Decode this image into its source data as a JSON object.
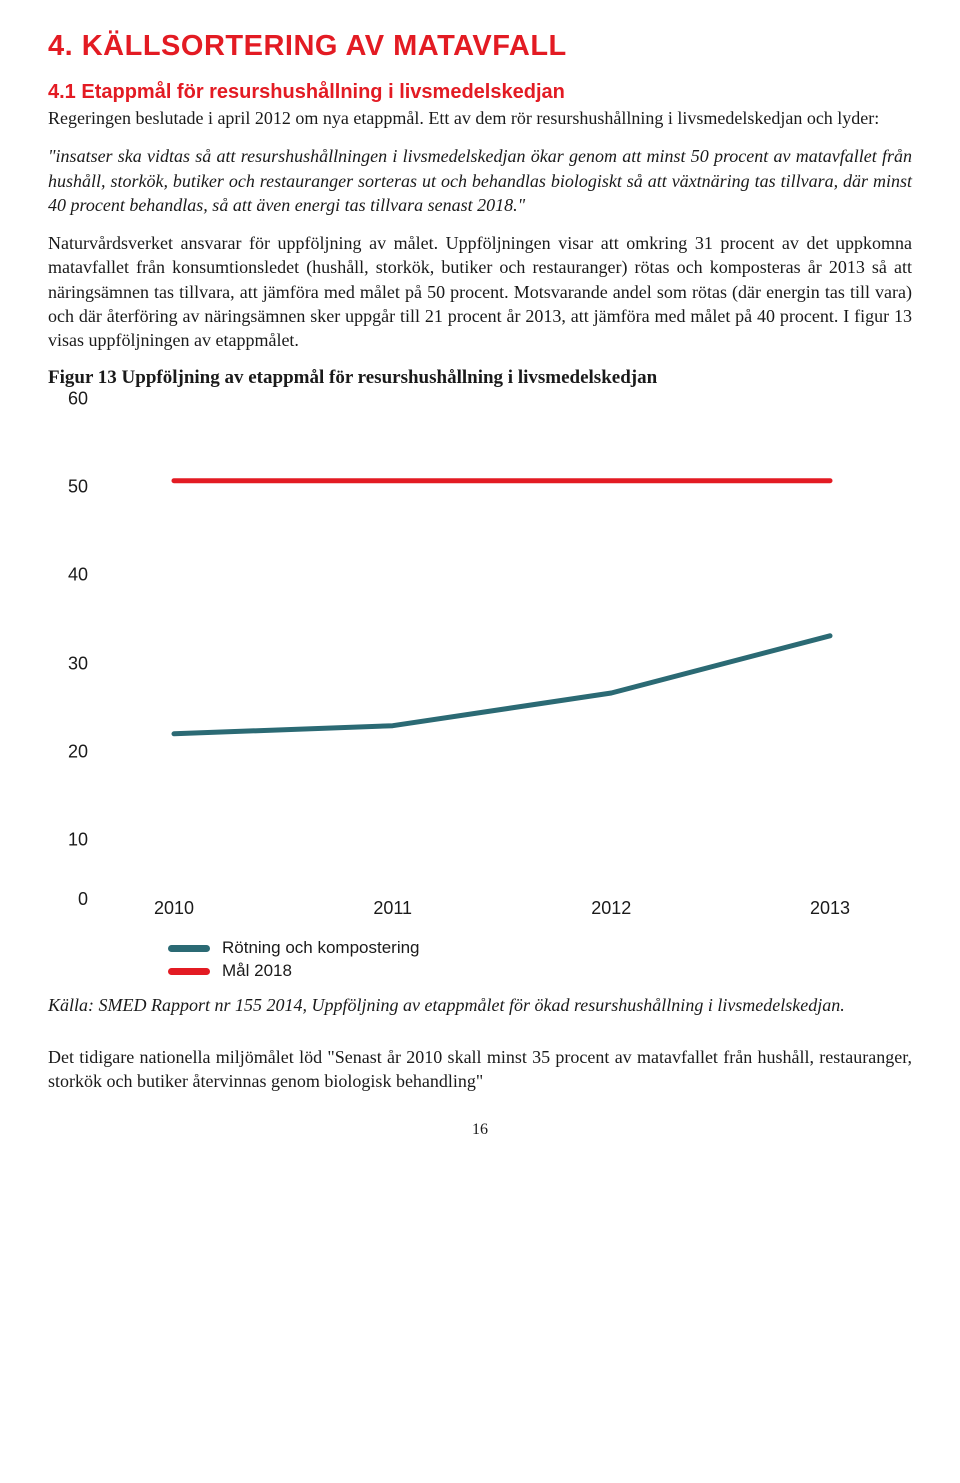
{
  "colors": {
    "accent_red": "#e31b23",
    "series_teal": "#2b6a74",
    "text": "#1a1a1a",
    "bg": "#ffffff"
  },
  "heading_main": "4. KÄLLSORTERING AV MATAVFALL",
  "heading_sub": "4.1 Etappmål för resurshushållning i livsmedelskedjan",
  "intro": "Regeringen beslutade i april 2012 om nya etappmål. Ett av dem rör resurshushållning i livsmedelskedjan och lyder:",
  "quote": "\"insatser ska vidtas så att resurshushållningen i livsmedelskedjan ökar genom att minst 50 procent av matavfallet från hushåll, storkök, butiker och restauranger sorteras ut och behandlas biologiskt så att växtnäring tas tillvara, där minst 40 procent behandlas, så att även energi tas tillvara senast 2018.\"",
  "para2": "Naturvårdsverket ansvarar för uppföljning av målet. Uppföljningen visar att omkring 31 procent av det uppkomna matavfallet från konsumtionsledet (hushåll, storkök, butiker och restauranger) rötas och komposteras år 2013 så att näringsämnen tas tillvara, att jämföra med målet på 50 procent. Motsvarande andel som rötas (där energin tas till vara) och där återföring av näringsämnen sker uppgår till 21 procent år 2013, att jämföra med målet på 40 procent. I figur 13 visas uppföljningen av etappmålet.",
  "fig_title": "Figur 13 Uppföljning av etappmål för resurshushållning i livsmedelskedjan",
  "chart": {
    "type": "line",
    "ylim": [
      0,
      60
    ],
    "ytick_step": 10,
    "yticks": [
      0,
      10,
      20,
      30,
      40,
      50,
      60
    ],
    "xticks": [
      "2010",
      "2011",
      "2012",
      "2013"
    ],
    "series": [
      {
        "name": "Rötning och kompostering",
        "color": "#2b6a74",
        "line_width": 5,
        "values": [
          19,
          20,
          24,
          31
        ]
      },
      {
        "name": "Mål 2018",
        "color": "#e31b23",
        "line_width": 5,
        "values": [
          50,
          50,
          50,
          50
        ]
      }
    ],
    "background_color": "#ffffff",
    "axis_font": "Arial",
    "axis_fontsize": 18
  },
  "legend": {
    "item1": "Rötning och kompostering",
    "item2": "Mål 2018"
  },
  "source": "Källa: SMED Rapport nr 155 2014, Uppföljning av etappmålet för ökad resurshushållning i livsmedelskedjan.",
  "para3": "Det tidigare nationella miljömålet löd \"Senast år 2010 skall minst 35 procent av matavfallet från hushåll, restauranger, storkök och butiker återvinnas genom biologisk behandling\"",
  "page_num": "16"
}
